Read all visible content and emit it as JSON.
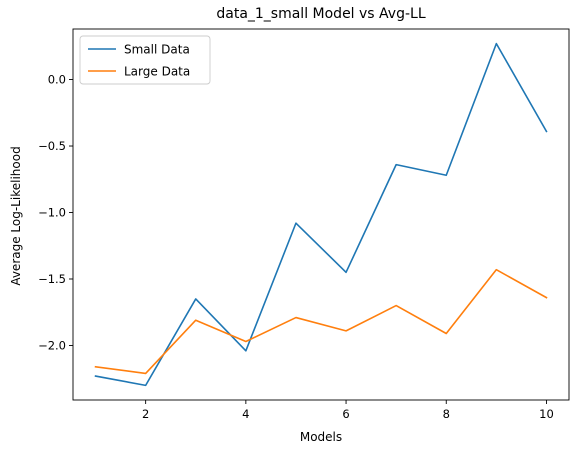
{
  "chart_data": {
    "type": "line",
    "title": "data_1_small Model vs Avg-LL",
    "xlabel": "Models",
    "ylabel": "Average Log-Likelihood",
    "x": [
      1,
      2,
      3,
      4,
      5,
      6,
      7,
      8,
      9,
      10
    ],
    "xlim": [
      0.55,
      10.45
    ],
    "ylim": [
      -2.41,
      0.38
    ],
    "xticks": [
      2,
      4,
      6,
      8,
      10
    ],
    "yticks": [
      -2.0,
      -1.5,
      -1.0,
      -0.5,
      0.0
    ],
    "grid": false,
    "legend_position": "top-left",
    "series": [
      {
        "name": "Small Data",
        "color": "#1f77b4",
        "values": [
          -2.23,
          -2.3,
          -1.65,
          -2.04,
          -1.08,
          -1.45,
          -0.64,
          -0.72,
          0.27,
          -0.39
        ]
      },
      {
        "name": "Large Data",
        "color": "#ff7f0e",
        "values": [
          -2.16,
          -2.21,
          -1.81,
          -1.97,
          -1.79,
          -1.89,
          -1.7,
          -1.91,
          -1.43,
          -1.64
        ]
      }
    ]
  }
}
